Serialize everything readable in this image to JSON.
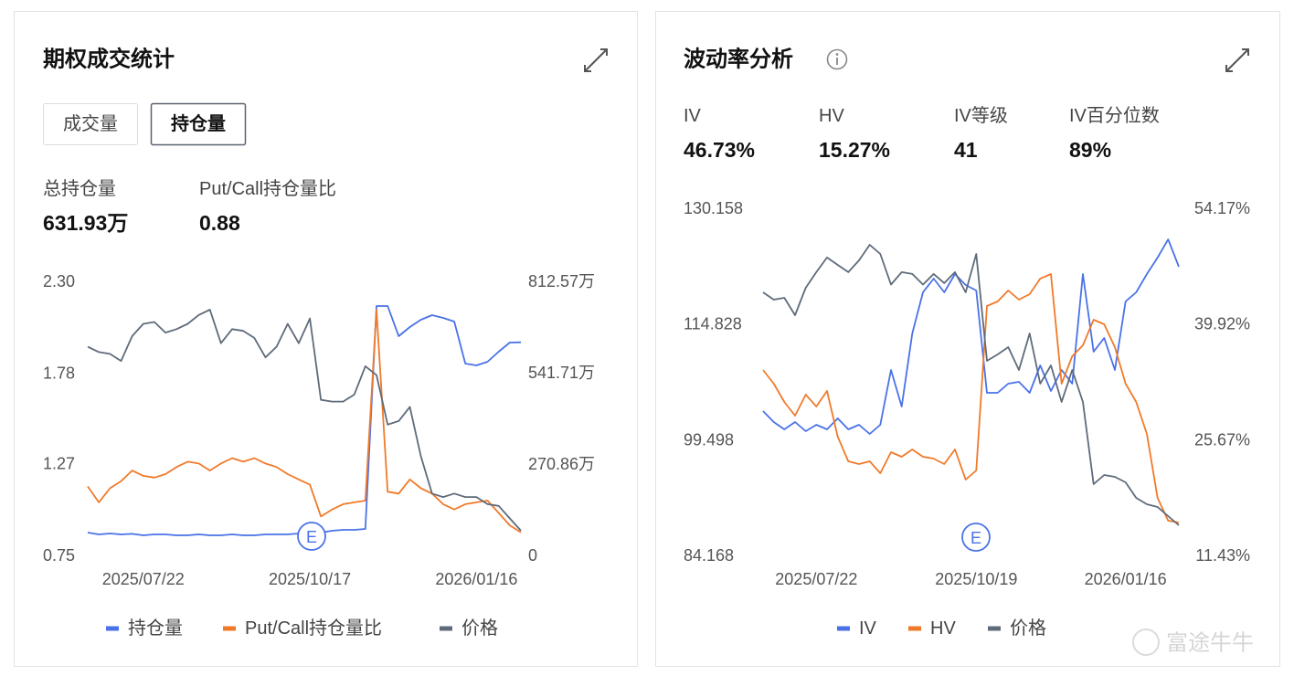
{
  "left_panel": {
    "title": "期权成交统计",
    "tabs": [
      "成交量",
      "持仓量"
    ],
    "stats": [
      {
        "label": "总持仓量",
        "value": "631.93万"
      },
      {
        "label": "Put/Call持仓量比",
        "value": 0.88
      }
    ]
  },
  "right_panel": {
    "title": "波动率分析",
    "stats": [
      {
        "label": "IV",
        "value": "46.73%"
      },
      {
        "label": "HV",
        "value": "15.27%"
      },
      {
        "label": "IV等级",
        "value": 41
      },
      {
        "label": "IV百分位数",
        "value": "89%"
      }
    ]
  },
  "watermark": "富途牛牛",
  "chart_data": [
    {
      "type": "line",
      "categories": [
        null,
        null,
        null,
        null,
        null,
        "2025/07/22",
        null,
        null,
        null,
        null,
        null,
        null,
        null,
        null,
        null,
        null,
        null,
        null,
        null,
        null,
        "2025/10/17",
        null,
        null,
        null,
        null,
        null,
        null,
        null,
        null,
        null,
        null,
        null,
        null,
        null,
        null,
        "2026/01/16",
        null,
        null,
        null,
        null
      ],
      "ylim": [
        0.75,
        2.3
      ],
      "yticks": [
        0.75,
        1.27,
        1.78,
        {
          "value": 2.3,
          "label": "2.30"
        }
      ],
      "y2lim": [
        0,
        812.57
      ],
      "y2ticks": [
        0,
        {
          "value": 270.86,
          "label": "270.86万"
        },
        {
          "value": 541.71,
          "label": "541.71万"
        },
        {
          "value": 812.57,
          "label": "812.57万"
        }
      ],
      "grid": false,
      "legend": "bottom",
      "annotations": [
        "E"
      ],
      "series": [
        {
          "name": "持仓量",
          "color": "#4a72e8",
          "axis": "y2",
          "values": [
            67.7,
            62.3,
            65,
            62.3,
            64,
            59.6,
            62.3,
            62.3,
            59.6,
            59.6,
            62.3,
            59.6,
            59.6,
            62.3,
            59.6,
            59.6,
            62.3,
            62.3,
            62.3,
            64.9,
            62.3,
            67.7,
            73.1,
            75.8,
            75.8,
            78.5,
            739.4,
            739.4,
            650.1,
            677.2,
            698.8,
            712.4,
            704.2,
            693.4,
            568.8,
            563.4,
            574.2,
            604,
            631.1,
            631.9
          ]
        },
        {
          "name": "Put/Call持仓量比",
          "color": "#f07a2a",
          "values": [
            1.14,
            1.05,
            1.13,
            1.17,
            1.23,
            1.2,
            1.19,
            1.21,
            1.25,
            1.28,
            1.27,
            1.23,
            1.27,
            1.3,
            1.28,
            1.3,
            1.27,
            1.25,
            1.21,
            1.18,
            1.15,
            0.97,
            1.01,
            1.04,
            1.05,
            1.06,
            2.14,
            1.11,
            1.1,
            1.18,
            1.13,
            1.1,
            1.04,
            1.01,
            1.04,
            1.05,
            1.06,
            0.99,
            0.92,
            0.88
          ]
        },
        {
          "name": "价格",
          "color": "#5f6b7a",
          "values": [
            1.93,
            1.9,
            1.89,
            1.85,
            1.99,
            2.06,
            2.07,
            2.01,
            2.03,
            2.06,
            2.11,
            2.14,
            1.95,
            2.03,
            2.02,
            1.98,
            1.87,
            1.93,
            2.06,
            1.95,
            2.09,
            1.63,
            1.62,
            1.62,
            1.66,
            1.82,
            1.77,
            1.49,
            1.51,
            1.59,
            1.31,
            1.1,
            1.08,
            1.1,
            1.08,
            1.08,
            1.04,
            1.03,
            0.96,
            0.89
          ]
        }
      ]
    },
    {
      "type": "line",
      "categories": [
        null,
        null,
        null,
        null,
        null,
        "2025/07/22",
        null,
        null,
        null,
        null,
        null,
        null,
        null,
        null,
        null,
        null,
        null,
        null,
        null,
        null,
        "2025/10/19",
        null,
        null,
        null,
        null,
        null,
        null,
        null,
        null,
        null,
        null,
        null,
        null,
        null,
        "2026/01/16",
        null,
        null,
        null,
        null,
        null
      ],
      "ylim": [
        84.168,
        130.158
      ],
      "yticks": [
        84.168,
        99.498,
        114.828,
        130.158
      ],
      "y2lim": [
        11.43,
        54.17
      ],
      "y2ticks": [
        {
          "value": 11.43,
          "label": "11.43%"
        },
        {
          "value": 25.67,
          "label": "25.67%"
        },
        {
          "value": 39.92,
          "label": "39.92%"
        },
        {
          "value": 54.17,
          "label": "54.17%"
        }
      ],
      "grid": false,
      "legend": "bottom",
      "annotations": [
        "E"
      ],
      "series": [
        {
          "name": "IV",
          "color": "#4a72e8",
          "axis": "y2",
          "values": [
            29.2,
            27.85,
            26.95,
            27.85,
            26.73,
            27.51,
            26.95,
            28.3,
            26.95,
            27.51,
            26.39,
            27.51,
            34.26,
            29.76,
            38.76,
            43.82,
            45.51,
            43.82,
            46.07,
            44.72,
            44.05,
            31.45,
            31.45,
            32.57,
            32.8,
            31.45,
            34.82,
            31.67,
            34.26,
            32.57,
            46.07,
            36.51,
            38.2,
            34.26,
            42.7,
            43.82,
            46.07,
            48.1,
            50.34,
            46.97
          ]
        },
        {
          "name": "HV",
          "color": "#f07a2a",
          "axis": "y2",
          "values": [
            34.26,
            32.57,
            30.33,
            28.64,
            31.22,
            29.76,
            31.67,
            26.05,
            23.01,
            22.68,
            23.01,
            21.55,
            24.14,
            23.58,
            24.48,
            23.58,
            23.35,
            22.68,
            24.48,
            20.76,
            21.89,
            42.13,
            42.7,
            44.05,
            42.92,
            43.6,
            45.51,
            46.07,
            32.57,
            35.95,
            37.3,
            40.45,
            39.89,
            37.07,
            32.57,
            30.33,
            26.39,
            18.52,
            15.7,
            15.48
          ]
        },
        {
          "name": "价格",
          "color": "#5f6b7a",
          "values": [
            119.02,
            118.06,
            118.3,
            116,
            119.63,
            121.7,
            123.63,
            122.66,
            121.7,
            123.26,
            125.32,
            124.11,
            120.05,
            121.7,
            121.46,
            120.05,
            121.46,
            120.24,
            121.7,
            119.02,
            124.11,
            109.95,
            110.79,
            111.76,
            108.74,
            113.58,
            106.92,
            109.34,
            104.5,
            108.74,
            104.5,
            93.61,
            94.82,
            94.58,
            93.85,
            91.79,
            90.95,
            90.58,
            89.37,
            88.16
          ]
        }
      ]
    }
  ]
}
